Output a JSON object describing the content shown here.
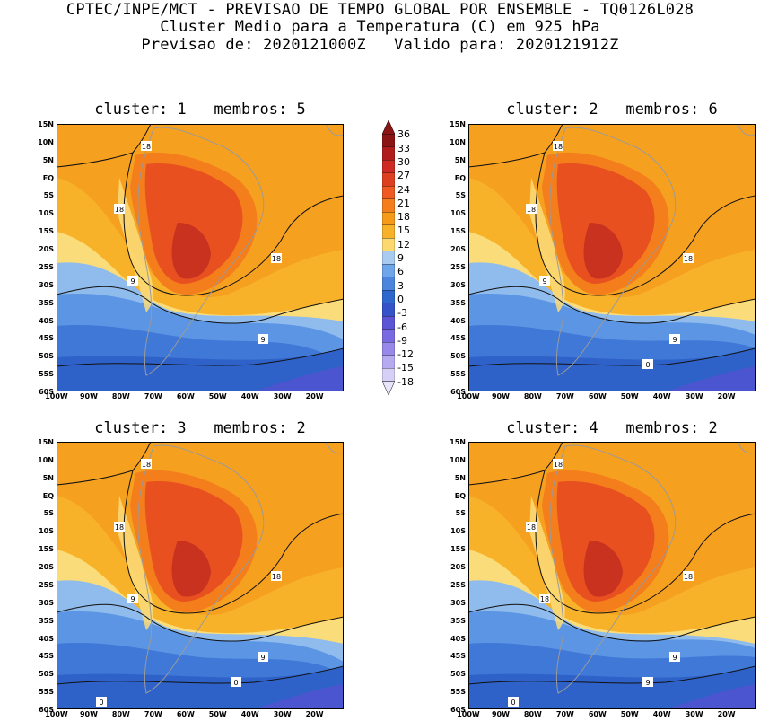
{
  "header": {
    "line1": "CPTEC/INPE/MCT - PREVISAO DE TEMPO GLOBAL POR ENSEMBLE - TQ0126L028",
    "line2": "Cluster Medio para a Temperatura (C) em 925 hPa",
    "line3": "Previsao de: 2020121000Z   Valido para: 2020121912Z"
  },
  "lat_labels": [
    "15N",
    "10N",
    "5N",
    "EQ",
    "5S",
    "10S",
    "15S",
    "20S",
    "25S",
    "30S",
    "35S",
    "40S",
    "45S",
    "50S",
    "55S",
    "60S"
  ],
  "lon_labels": [
    "100W",
    "90W",
    "80W",
    "70W",
    "60W",
    "50W",
    "40W",
    "30W",
    "20W"
  ],
  "colorbar": {
    "levels": [
      "36",
      "33",
      "30",
      "27",
      "24",
      "21",
      "18",
      "15",
      "12",
      "9",
      "6",
      "3",
      "0",
      "-3",
      "-6",
      "-9",
      "-12",
      "-15",
      "-18"
    ],
    "colors": [
      "#8b1515",
      "#b01c1c",
      "#cc2a22",
      "#dd4020",
      "#ee5a22",
      "#f47d1c",
      "#f69a1a",
      "#f7b22a",
      "#fbd870",
      "#a9cbf0",
      "#6fa5e9",
      "#4b85dc",
      "#2f68cc",
      "#3553c8",
      "#5b55d6",
      "#7a6ae2",
      "#9788ea",
      "#b6aaf1",
      "#d6d0f7"
    ]
  },
  "panels": [
    {
      "title": "cluster: 1   membros: 5",
      "contour_labels": [
        "18",
        "18",
        "18",
        "9",
        "9"
      ]
    },
    {
      "title": "cluster: 2   membros: 6",
      "contour_labels": [
        "18",
        "18",
        "18",
        "9",
        "9",
        "0"
      ]
    },
    {
      "title": "cluster: 3   membros: 2",
      "contour_labels": [
        "18",
        "18",
        "18",
        "9",
        "9",
        "0",
        "0"
      ]
    },
    {
      "title": "cluster: 4   membros: 2",
      "contour_labels": [
        "18",
        "18",
        "18",
        "18",
        "9",
        "9",
        "0"
      ]
    }
  ]
}
